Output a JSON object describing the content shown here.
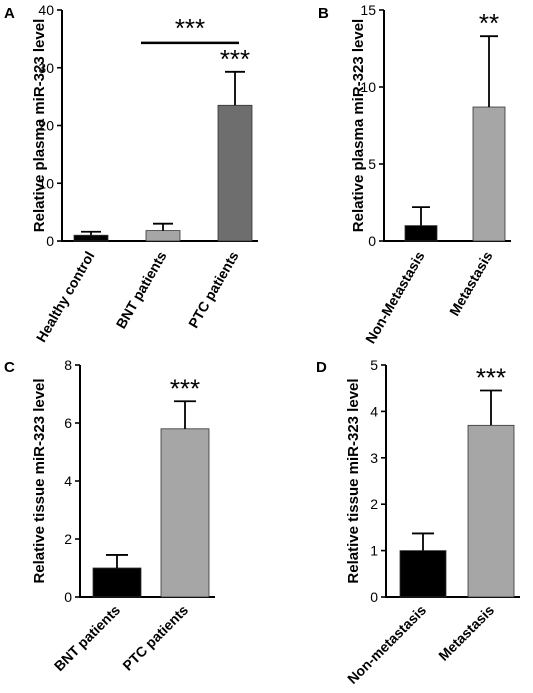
{
  "chart_data": [
    {
      "type": "bar",
      "panel": "A",
      "ylabel": "Relative plasma miR-323 level",
      "ylim": [
        0,
        40
      ],
      "yticks": [
        0,
        10,
        20,
        30,
        40
      ],
      "categories": [
        "Healthy control",
        "BNT patients",
        "PTC patients"
      ],
      "values": [
        1.0,
        1.8,
        23.5
      ],
      "errors": [
        0.6,
        1.2,
        5.8
      ],
      "colors": [
        "#000000",
        "#a6a6a6",
        "#6e6e6e"
      ],
      "annotations": [
        "",
        "",
        "***"
      ],
      "bracket": {
        "from": 1,
        "to": 2,
        "y": 34.3,
        "label": "***"
      }
    },
    {
      "type": "bar",
      "panel": "B",
      "ylabel": "Relative plasma miR-323 level",
      "ylim": [
        0,
        15
      ],
      "yticks": [
        0,
        5,
        10,
        15
      ],
      "categories": [
        "Non-Metastasis",
        "Metastasis"
      ],
      "values": [
        1.0,
        8.7
      ],
      "errors": [
        1.2,
        4.6
      ],
      "colors": [
        "#000000",
        "#a6a6a6"
      ],
      "annotations": [
        "",
        "**"
      ]
    },
    {
      "type": "bar",
      "panel": "C",
      "ylabel": "Relative tissue miR-323 level",
      "ylim": [
        0,
        8
      ],
      "yticks": [
        0,
        2,
        4,
        6,
        8
      ],
      "categories": [
        "BNT patients",
        "PTC patients"
      ],
      "values": [
        1.0,
        5.8
      ],
      "errors": [
        0.45,
        0.95
      ],
      "colors": [
        "#000000",
        "#a6a6a6"
      ],
      "annotations": [
        "",
        "***"
      ]
    },
    {
      "type": "bar",
      "panel": "D",
      "ylabel": "Relative tissue miR-323 level",
      "ylim": [
        0,
        5
      ],
      "yticks": [
        0,
        1,
        2,
        3,
        4,
        5
      ],
      "categories": [
        "Non-metastasis",
        "Metastasis"
      ],
      "values": [
        1.0,
        3.7
      ],
      "errors": [
        0.37,
        0.75
      ],
      "colors": [
        "#000000",
        "#a6a6a6"
      ],
      "annotations": [
        "",
        "***"
      ]
    }
  ]
}
